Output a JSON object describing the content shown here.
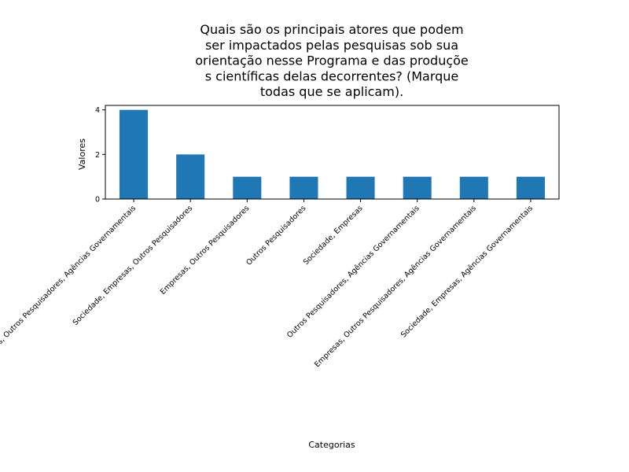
{
  "chart_data": {
    "type": "bar",
    "title": "Quais são os principais atores que podem\nser impactados pelas pesquisas sob sua\norientação nesse Programa e das produçõe\ns científicas delas decorrentes? (Marque\ntodas que se aplicam).",
    "xlabel": "Categorias",
    "ylabel": "Valores",
    "categories": [
      "Sociedade, Empresas, Outros Pesquisadores, Agências Governamentais",
      "Sociedade, Empresas, Outros Pesquisadores",
      "Empresas, Outros Pesquisadores",
      "Outros Pesquisadores",
      "Sociedade, Empresas",
      "Outros Pesquisadores, Agências Governamentais",
      "Empresas, Outros Pesquisadores, Agências Governamentais",
      "Sociedade, Empresas, Agências Governamentais"
    ],
    "values": [
      4,
      2,
      1,
      1,
      1,
      1,
      1,
      1
    ],
    "ylim": [
      0,
      4.2
    ],
    "yticks": [
      0,
      2,
      4
    ],
    "bar_color": "#1f77b4",
    "grid": false,
    "tick_rotation_deg": 45
  }
}
